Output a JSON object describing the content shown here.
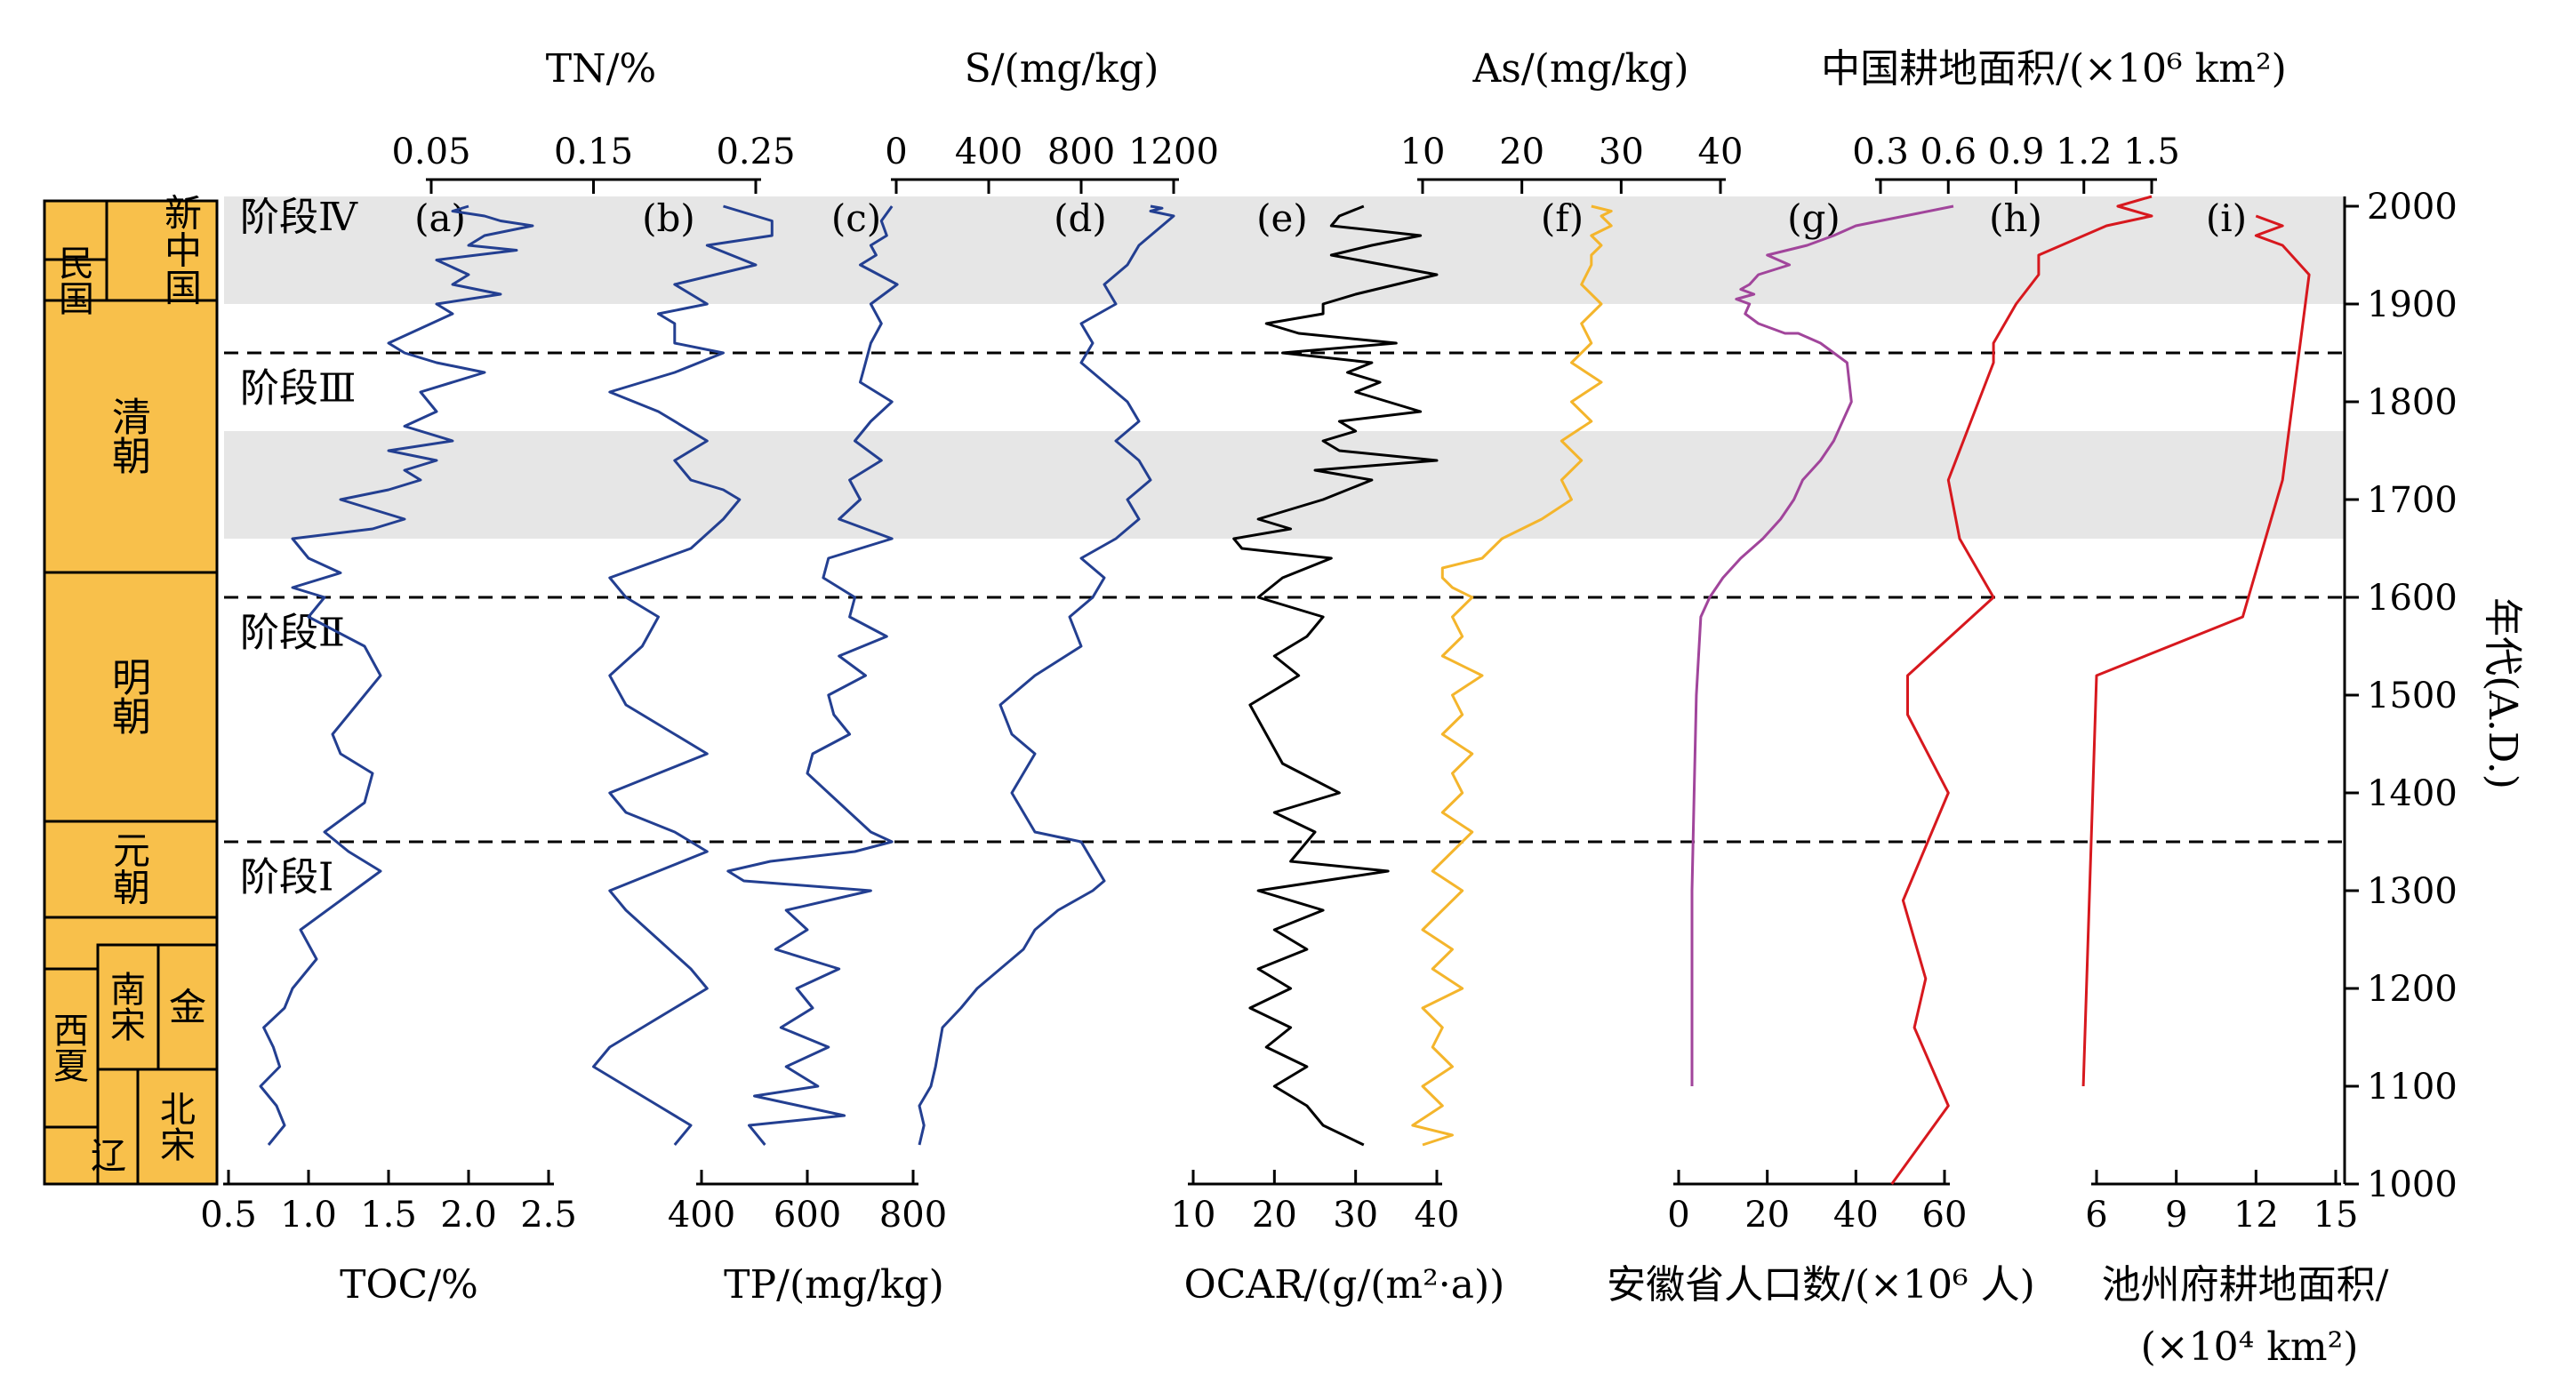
{
  "chart_data": {
    "type": "line",
    "y_axis": {
      "label": "年代(A.D.)",
      "range": [
        1000,
        2000
      ],
      "ticks": [
        "1000",
        "1100",
        "1200",
        "1300",
        "1400",
        "1500",
        "1600",
        "1700",
        "1800",
        "1900",
        "2000"
      ]
    },
    "stages": [
      {
        "label": "阶段Ⅳ",
        "year": 1990
      },
      {
        "label": "阶段Ⅲ",
        "year": 1815
      },
      {
        "label": "阶段Ⅱ",
        "year": 1565
      },
      {
        "label": "阶段Ⅰ",
        "year": 1315
      }
    ],
    "stage_boundaries": [
      1850,
      1600,
      1350
    ],
    "shaded_bands": [
      [
        1900,
        2010
      ],
      [
        1660,
        1770
      ]
    ],
    "dynasties": [
      {
        "label": "新中国",
        "from": 1949,
        "to": 2010
      },
      {
        "label": "民国",
        "from": 1912,
        "to": 1949
      },
      {
        "label": "清朝",
        "from": 1644,
        "to": 1912
      },
      {
        "label": "明朝",
        "from": 1368,
        "to": 1644
      },
      {
        "label": "元朝",
        "from": 1271,
        "to": 1368
      },
      {
        "label": "南宋",
        "from": 1127,
        "to": 1271
      },
      {
        "label": "金",
        "from": 1115,
        "to": 1234
      },
      {
        "label": "西夏",
        "from": 1038,
        "to": 1227
      },
      {
        "label": "北宋",
        "from": 1000,
        "to": 1127
      },
      {
        "label": "辽",
        "from": 1000,
        "to": 1125
      }
    ],
    "top_axes": [
      {
        "label": "TN/%",
        "ticks": [
          "0.05",
          "0.15",
          "0.25"
        ]
      },
      {
        "label": "S/(mg/kg)",
        "ticks": [
          "0",
          "400",
          "800",
          "1200"
        ]
      },
      {
        "label": "As/(mg/kg)",
        "ticks": [
          "10",
          "20",
          "30",
          "40"
        ]
      },
      {
        "label": "中国耕地面积/(×10⁶ km²)",
        "ticks": [
          "0.3",
          "0.6",
          "0.9",
          "1.2",
          "1.5"
        ]
      }
    ],
    "bottom_axes": [
      {
        "label": "TOC/%",
        "ticks": [
          "0.5",
          "1.0",
          "1.5",
          "2.0",
          "2.5"
        ]
      },
      {
        "label": "TP/(mg/kg)",
        "ticks": [
          "400",
          "600",
          "800"
        ]
      },
      {
        "label": "OCAR/(g/(m²·a))",
        "ticks": [
          "10",
          "20",
          "30",
          "40"
        ]
      },
      {
        "label": "安徽省人口数/(×10⁶ 人)",
        "ticks": [
          "0",
          "20",
          "40",
          "60"
        ]
      },
      {
        "label": "池州府耕地面积/",
        "label2": "(×10⁴ km²)",
        "ticks": [
          "6",
          "9",
          "12",
          "15"
        ]
      }
    ],
    "panel_labels": [
      "(a)",
      "(b)",
      "(c)",
      "(d)",
      "(e)",
      "(f)",
      "(g)",
      "(h)",
      "(i)"
    ],
    "series": [
      {
        "panel": "(a)",
        "variable": "TOC",
        "unit": "%",
        "color": "#233f91",
        "x": [
          0.75,
          0.85,
          0.8,
          0.7,
          0.82,
          0.78,
          0.72,
          0.85,
          0.9,
          1.05,
          0.95,
          1.2,
          1.45,
          1.25,
          1.1,
          1.35,
          1.4,
          1.2,
          1.15,
          1.3,
          1.45,
          1.35,
          1.0,
          1.1,
          0.9,
          1.2,
          1.0,
          0.9,
          1.4,
          1.6,
          1.2,
          1.5,
          1.7,
          1.6,
          1.8,
          1.5,
          1.9,
          1.6,
          1.8,
          1.7,
          2.1,
          1.8,
          1.6,
          1.5,
          1.7,
          1.9,
          1.8,
          2.2,
          1.9,
          2.0,
          1.8,
          2.3,
          2.0,
          2.1,
          2.4,
          2.2,
          2.1,
          1.9,
          2.0
        ],
        "y": [
          1040,
          1060,
          1080,
          1100,
          1120,
          1140,
          1160,
          1180,
          1200,
          1230,
          1260,
          1290,
          1320,
          1340,
          1360,
          1390,
          1420,
          1440,
          1460,
          1490,
          1520,
          1550,
          1580,
          1600,
          1610,
          1625,
          1640,
          1660,
          1670,
          1680,
          1700,
          1710,
          1720,
          1730,
          1740,
          1750,
          1760,
          1775,
          1790,
          1810,
          1830,
          1840,
          1850,
          1860,
          1875,
          1890,
          1900,
          1910,
          1920,
          1930,
          1945,
          1955,
          1960,
          1970,
          1980,
          1985,
          1990,
          1995,
          2000
        ]
      },
      {
        "panel": "(b)",
        "variable": "TN",
        "unit": "%",
        "color": "#233f91",
        "x": [
          0.2,
          0.21,
          0.19,
          0.17,
          0.15,
          0.16,
          0.18,
          0.2,
          0.22,
          0.21,
          0.19,
          0.17,
          0.16,
          0.19,
          0.22,
          0.2,
          0.17,
          0.16,
          0.19,
          0.22,
          0.2,
          0.17,
          0.16,
          0.18,
          0.19,
          0.17,
          0.16,
          0.21,
          0.23,
          0.24,
          0.23,
          0.21,
          0.2,
          0.22,
          0.19,
          0.16,
          0.2,
          0.23,
          0.2,
          0.2,
          0.19,
          0.22,
          0.2,
          0.25,
          0.22,
          0.26,
          0.26,
          0.24,
          0.23
        ],
        "y": [
          1040,
          1060,
          1080,
          1100,
          1120,
          1140,
          1160,
          1180,
          1200,
          1220,
          1250,
          1280,
          1300,
          1320,
          1340,
          1360,
          1380,
          1400,
          1420,
          1440,
          1460,
          1490,
          1520,
          1550,
          1580,
          1600,
          1620,
          1650,
          1680,
          1700,
          1710,
          1720,
          1740,
          1760,
          1790,
          1810,
          1830,
          1850,
          1860,
          1880,
          1890,
          1900,
          1920,
          1940,
          1960,
          1970,
          1985,
          1995,
          2000
        ]
      },
      {
        "panel": "(c)",
        "variable": "TP",
        "unit": "mg/kg",
        "color": "#233f91",
        "x": [
          520,
          490,
          670,
          500,
          620,
          560,
          640,
          550,
          610,
          580,
          660,
          540,
          600,
          560,
          720,
          480,
          450,
          530,
          690,
          760,
          720,
          680,
          640,
          600,
          610,
          680,
          650,
          640,
          710,
          660,
          750,
          680,
          690,
          630,
          640,
          760,
          660,
          700,
          680,
          740,
          690,
          720,
          760,
          700,
          710,
          720,
          740,
          720,
          770,
          700,
          730,
          720,
          750,
          740,
          760
        ],
        "y": [
          1040,
          1060,
          1070,
          1090,
          1100,
          1120,
          1140,
          1160,
          1180,
          1200,
          1220,
          1240,
          1260,
          1280,
          1300,
          1310,
          1320,
          1330,
          1340,
          1350,
          1360,
          1380,
          1400,
          1420,
          1440,
          1460,
          1480,
          1500,
          1520,
          1540,
          1560,
          1580,
          1600,
          1620,
          1640,
          1660,
          1680,
          1700,
          1720,
          1740,
          1760,
          1780,
          1800,
          1820,
          1840,
          1860,
          1880,
          1900,
          1920,
          1940,
          1950,
          1960,
          1970,
          1985,
          2000
        ]
      },
      {
        "panel": "(d)",
        "variable": "S",
        "unit": "mg/kg",
        "color": "#233f91",
        "x": [
          100,
          120,
          100,
          150,
          170,
          200,
          280,
          350,
          450,
          550,
          600,
          700,
          850,
          900,
          850,
          800,
          600,
          550,
          500,
          550,
          600,
          500,
          450,
          600,
          800,
          750,
          850,
          900,
          800,
          950,
          1050,
          1000,
          1100,
          1050,
          950,
          1050,
          1000,
          900,
          800,
          850,
          800,
          950,
          900,
          1000,
          1050,
          1100,
          1150,
          1200,
          1100,
          1150,
          1100
        ],
        "y": [
          1040,
          1060,
          1080,
          1100,
          1120,
          1160,
          1180,
          1200,
          1220,
          1240,
          1260,
          1280,
          1300,
          1310,
          1330,
          1350,
          1360,
          1380,
          1400,
          1420,
          1440,
          1460,
          1490,
          1520,
          1550,
          1580,
          1600,
          1620,
          1640,
          1660,
          1680,
          1700,
          1720,
          1740,
          1760,
          1780,
          1800,
          1820,
          1840,
          1860,
          1880,
          1900,
          1920,
          1940,
          1960,
          1970,
          1980,
          1990,
          1995,
          1998,
          2000
        ]
      },
      {
        "panel": "(e)",
        "variable": "OCAR",
        "unit": "g/(m²·a)",
        "color": "#000000",
        "x": [
          31,
          26,
          24,
          20,
          24,
          19,
          22,
          17,
          22,
          18,
          24,
          20,
          26,
          18,
          34,
          22,
          25,
          20,
          28,
          21,
          19,
          17,
          23,
          20,
          24,
          26,
          18,
          21,
          27,
          16,
          15,
          22,
          18,
          26,
          32,
          25,
          40,
          28,
          26,
          30,
          28,
          38,
          30,
          33,
          29,
          32,
          21,
          35,
          23,
          19,
          26,
          26,
          30,
          40,
          27,
          32,
          38,
          27,
          28,
          31
        ],
        "y": [
          1040,
          1060,
          1080,
          1100,
          1120,
          1140,
          1160,
          1180,
          1200,
          1220,
          1240,
          1260,
          1280,
          1300,
          1320,
          1330,
          1360,
          1380,
          1400,
          1430,
          1460,
          1490,
          1520,
          1540,
          1560,
          1580,
          1600,
          1620,
          1640,
          1650,
          1660,
          1670,
          1680,
          1700,
          1720,
          1730,
          1740,
          1750,
          1760,
          1770,
          1780,
          1790,
          1810,
          1820,
          1830,
          1840,
          1850,
          1860,
          1870,
          1880,
          1890,
          1900,
          1910,
          1930,
          1950,
          1960,
          1970,
          1980,
          1990,
          2000
        ]
      },
      {
        "panel": "(f)",
        "variable": "As",
        "unit": "mg/kg",
        "color": "#f4b52c",
        "x": [
          10,
          13,
          9,
          12,
          10,
          13,
          11,
          12,
          10,
          14,
          11,
          13,
          10,
          12,
          14,
          11,
          13,
          15,
          12,
          14,
          13,
          15,
          12,
          14,
          13,
          16,
          12,
          14,
          13,
          15,
          13,
          12,
          12,
          16,
          18,
          22,
          25,
          24,
          26,
          24,
          27,
          25,
          28,
          25,
          27,
          26,
          28,
          26,
          27,
          27,
          28,
          27,
          29,
          28,
          29,
          27
        ],
        "y": [
          1040,
          1050,
          1060,
          1080,
          1100,
          1120,
          1140,
          1160,
          1180,
          1200,
          1220,
          1240,
          1260,
          1280,
          1300,
          1320,
          1340,
          1360,
          1380,
          1400,
          1420,
          1440,
          1460,
          1480,
          1500,
          1520,
          1540,
          1560,
          1580,
          1600,
          1610,
          1620,
          1630,
          1640,
          1660,
          1680,
          1700,
          1720,
          1740,
          1760,
          1780,
          1800,
          1820,
          1840,
          1860,
          1880,
          1900,
          1920,
          1940,
          1950,
          1960,
          1970,
          1980,
          1990,
          1995,
          2000
        ]
      },
      {
        "panel": "(g)",
        "variable": "安徽省人口数",
        "unit": "×10⁶ 人",
        "color": "#a1459b",
        "x": [
          3,
          3,
          3.5,
          4,
          5,
          7,
          10,
          14,
          19,
          23,
          26,
          28,
          32,
          35,
          39,
          38,
          32,
          27,
          24,
          18,
          15,
          16,
          13,
          17,
          14,
          16,
          18,
          25,
          20,
          29,
          35,
          40,
          62
        ],
        "y": [
          1100,
          1300,
          1400,
          1500,
          1580,
          1600,
          1620,
          1640,
          1660,
          1680,
          1700,
          1720,
          1740,
          1760,
          1800,
          1840,
          1860,
          1870,
          1870,
          1880,
          1890,
          1900,
          1905,
          1910,
          1915,
          1920,
          1930,
          1940,
          1950,
          1960,
          1970,
          1980,
          2000
        ]
      },
      {
        "panel": "(h)",
        "variable": "中国耕地面积",
        "unit": "×10⁶ km²",
        "color": "#d7181e",
        "x": [
          0.35,
          0.6,
          0.45,
          0.5,
          0.4,
          0.6,
          0.42,
          0.42,
          0.8,
          0.65,
          0.6,
          0.7,
          0.8,
          0.8,
          0.9,
          1.0,
          1.0,
          1.3,
          1.5,
          1.35,
          1.5
        ],
        "y": [
          1000,
          1080,
          1160,
          1210,
          1290,
          1400,
          1480,
          1520,
          1600,
          1660,
          1720,
          1780,
          1840,
          1860,
          1900,
          1930,
          1950,
          1980,
          1990,
          2000,
          2010
        ]
      },
      {
        "panel": "(i)",
        "variable": "池州府耕地面积",
        "unit": "×10⁴ km²",
        "color": "#d7181e",
        "x": [
          5.5,
          6,
          11.5,
          13,
          14,
          13,
          12,
          13,
          12
        ],
        "y": [
          1100,
          1520,
          1580,
          1720,
          1930,
          1960,
          1970,
          1980,
          1990
        ]
      }
    ]
  }
}
